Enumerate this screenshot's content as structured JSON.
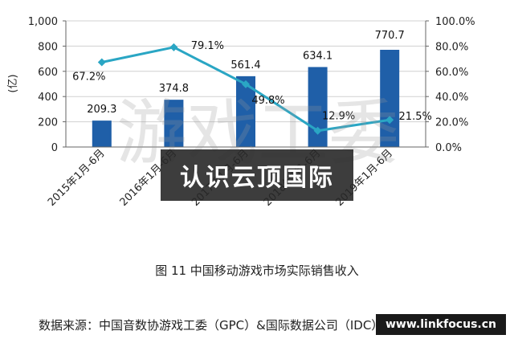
{
  "chart_data": {
    "type": "bar",
    "categories": [
      "2015年1月-6月",
      "2016年1月-6月",
      "2017年1月-6月",
      "2018年1月-6月",
      "2019年1月-6月"
    ],
    "ylabel": "(亿)",
    "ylim": [
      0,
      1000
    ],
    "yticks": [
      "0",
      "200",
      "400",
      "600",
      "800",
      "1,000"
    ],
    "y2lim": [
      0,
      100
    ],
    "y2ticks": [
      "0.0%",
      "20.0%",
      "40.0%",
      "60.0%",
      "80.0%",
      "100.0%"
    ],
    "grid": true,
    "series": [
      {
        "type": "bar",
        "axis": "left",
        "values": [
          209.3,
          374.8,
          561.4,
          634.1,
          770.7
        ],
        "labels": [
          "209.3",
          "374.8",
          "561.4",
          "634.1",
          "770.7"
        ],
        "color": "#1f5fa8"
      },
      {
        "type": "line",
        "axis": "right",
        "values": [
          67.2,
          79.1,
          49.8,
          12.9,
          21.5
        ],
        "labels": [
          "67.2%",
          "79.1%",
          "49.8%",
          "12.9%",
          "21.5%"
        ],
        "color": "#2aa6c4"
      }
    ]
  },
  "caption": "图 11  中国移动游戏市场实际销售收入",
  "source": "数据来源：中国音数协游戏工委（GPC）&国际数据公司（IDC）",
  "overlay_text": "认识云顶国际",
  "watermark": "游戏工委",
  "site": "www.linkfocus.cn"
}
